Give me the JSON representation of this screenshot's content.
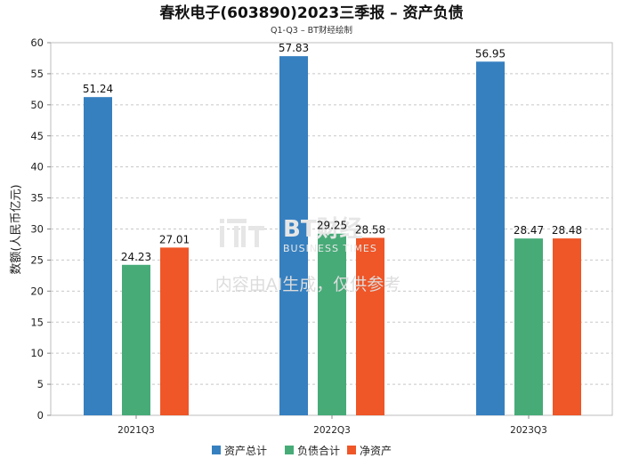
{
  "chart_data": {
    "type": "bar",
    "title": "春秋电子(603890)2023三季报 – 资产负债",
    "subtitle": "Q1-Q3 – BT财经绘制",
    "ylabel": "数额(人民币亿元)",
    "xlabel": "",
    "ylim": [
      0,
      60
    ],
    "yticks": [
      0,
      5,
      10,
      15,
      20,
      25,
      30,
      35,
      40,
      45,
      50,
      55,
      60
    ],
    "grid": true,
    "legend_position": "bottom",
    "categories": [
      "2021Q3",
      "2022Q3",
      "2023Q3"
    ],
    "series": [
      {
        "name": "资产总计",
        "color": "#3680c0",
        "values": [
          51.24,
          57.83,
          56.95
        ]
      },
      {
        "name": "负债合计",
        "color": "#47ab78",
        "values": [
          24.23,
          29.25,
          28.47
        ]
      },
      {
        "name": "净资产",
        "color": "#ef5628",
        "values": [
          27.01,
          28.58,
          28.48
        ]
      }
    ]
  },
  "watermark": {
    "logo_text": "BT财经",
    "sub_text": "BUSINESS TIMES",
    "notice": "内容由AI生成，仅供参考"
  }
}
